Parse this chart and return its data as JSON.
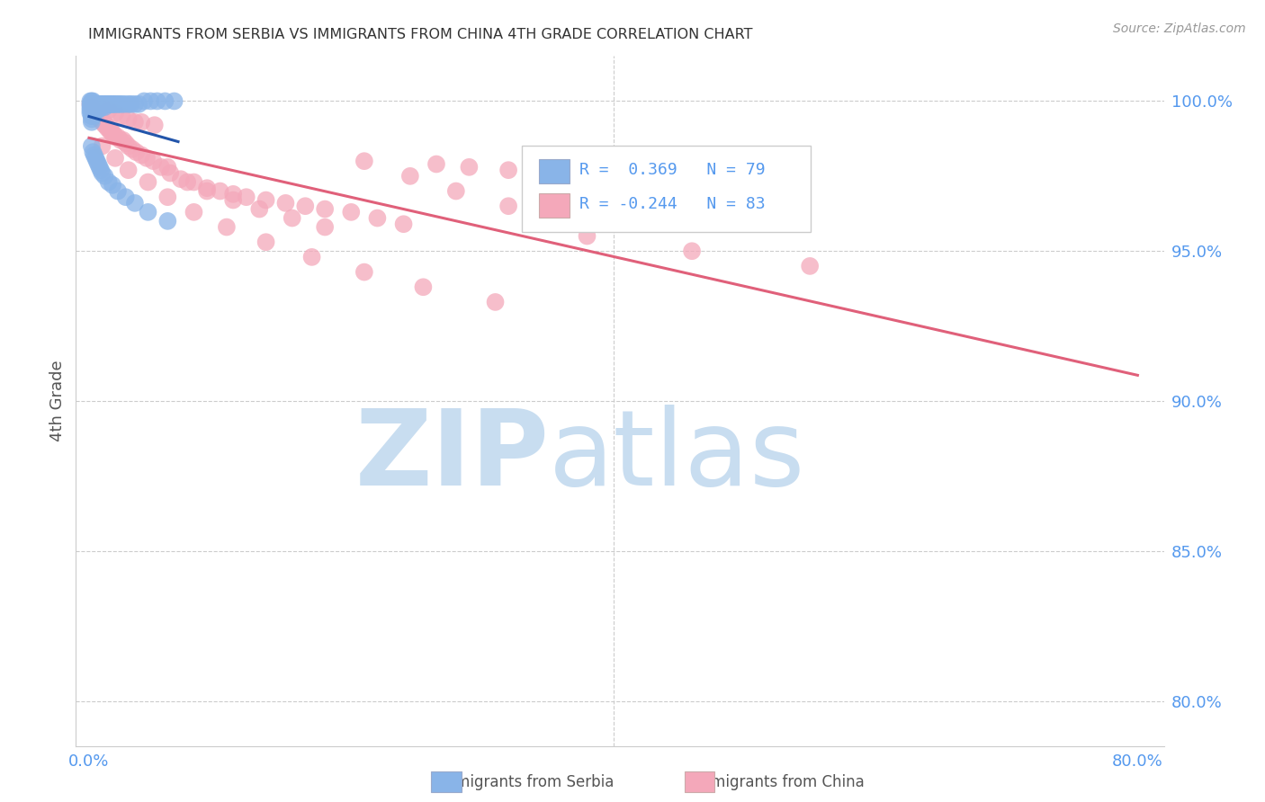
{
  "title": "IMMIGRANTS FROM SERBIA VS IMMIGRANTS FROM CHINA 4TH GRADE CORRELATION CHART",
  "source": "Source: ZipAtlas.com",
  "ylabel": "4th Grade",
  "ytick_labels": [
    "80.0%",
    "85.0%",
    "90.0%",
    "95.0%",
    "100.0%"
  ],
  "ytick_values": [
    0.8,
    0.85,
    0.9,
    0.95,
    1.0
  ],
  "xtick_labels": [
    "0.0%",
    "",
    "",
    "",
    "",
    "",
    "",
    "",
    "80.0%"
  ],
  "xtick_values": [
    0.0,
    0.1,
    0.2,
    0.3,
    0.4,
    0.5,
    0.6,
    0.7,
    0.8
  ],
  "xlim": [
    -0.01,
    0.82
  ],
  "ylim": [
    0.785,
    1.015
  ],
  "legend_serbia_R": "0.369",
  "legend_serbia_N": "79",
  "legend_china_R": "-0.244",
  "legend_china_N": "83",
  "color_serbia": "#89b4e8",
  "color_china": "#f4a8ba",
  "trendline_serbia_color": "#2255aa",
  "trendline_china_color": "#e0607a",
  "title_color": "#333333",
  "axis_label_color": "#555555",
  "tick_label_color": "#5599ee",
  "grid_color": "#cccccc",
  "watermark_color": "#c8ddf0",
  "legend_box_color": "#ffffff",
  "legend_border_color": "#cccccc",
  "serbia_x": [
    0.001,
    0.001,
    0.001,
    0.001,
    0.001,
    0.002,
    0.002,
    0.002,
    0.002,
    0.002,
    0.002,
    0.002,
    0.002,
    0.003,
    0.003,
    0.003,
    0.003,
    0.003,
    0.003,
    0.004,
    0.004,
    0.004,
    0.004,
    0.005,
    0.005,
    0.005,
    0.006,
    0.006,
    0.006,
    0.007,
    0.007,
    0.007,
    0.008,
    0.008,
    0.009,
    0.009,
    0.01,
    0.01,
    0.011,
    0.012,
    0.012,
    0.013,
    0.014,
    0.015,
    0.016,
    0.017,
    0.018,
    0.019,
    0.02,
    0.022,
    0.023,
    0.025,
    0.027,
    0.03,
    0.032,
    0.035,
    0.038,
    0.042,
    0.047,
    0.052,
    0.058,
    0.065,
    0.002,
    0.003,
    0.004,
    0.005,
    0.006,
    0.007,
    0.008,
    0.009,
    0.01,
    0.012,
    0.015,
    0.018,
    0.022,
    0.028,
    0.035,
    0.045,
    0.06
  ],
  "serbia_y": [
    0.999,
    0.998,
    0.997,
    1.0,
    0.996,
    0.999,
    0.998,
    0.997,
    0.996,
    0.995,
    0.994,
    0.993,
    1.0,
    0.999,
    0.998,
    0.997,
    0.996,
    0.995,
    1.0,
    0.999,
    0.998,
    0.997,
    0.996,
    0.999,
    0.998,
    0.997,
    0.999,
    0.998,
    0.997,
    0.999,
    0.998,
    0.997,
    0.999,
    0.998,
    0.999,
    0.998,
    0.999,
    0.998,
    0.999,
    0.999,
    0.998,
    0.999,
    0.999,
    0.999,
    0.999,
    0.999,
    0.999,
    0.999,
    0.999,
    0.999,
    0.999,
    0.999,
    0.999,
    0.999,
    0.999,
    0.999,
    0.999,
    1.0,
    1.0,
    1.0,
    1.0,
    1.0,
    0.985,
    0.983,
    0.982,
    0.981,
    0.98,
    0.979,
    0.978,
    0.977,
    0.976,
    0.975,
    0.973,
    0.972,
    0.97,
    0.968,
    0.966,
    0.963,
    0.96
  ],
  "china_x": [
    0.001,
    0.002,
    0.003,
    0.004,
    0.005,
    0.006,
    0.007,
    0.008,
    0.009,
    0.01,
    0.011,
    0.012,
    0.013,
    0.014,
    0.015,
    0.016,
    0.017,
    0.018,
    0.019,
    0.02,
    0.022,
    0.024,
    0.026,
    0.028,
    0.03,
    0.033,
    0.036,
    0.04,
    0.044,
    0.049,
    0.055,
    0.062,
    0.07,
    0.08,
    0.09,
    0.1,
    0.11,
    0.12,
    0.135,
    0.15,
    0.165,
    0.18,
    0.2,
    0.22,
    0.24,
    0.265,
    0.29,
    0.32,
    0.35,
    0.01,
    0.015,
    0.02,
    0.025,
    0.03,
    0.035,
    0.04,
    0.05,
    0.06,
    0.075,
    0.09,
    0.11,
    0.13,
    0.155,
    0.18,
    0.21,
    0.245,
    0.28,
    0.32,
    0.01,
    0.02,
    0.03,
    0.045,
    0.06,
    0.08,
    0.105,
    0.135,
    0.17,
    0.21,
    0.255,
    0.31,
    0.38,
    0.46,
    0.55
  ],
  "china_y": [
    0.999,
    0.998,
    0.997,
    0.996,
    0.995,
    0.995,
    0.995,
    0.994,
    0.994,
    0.993,
    0.993,
    0.992,
    0.992,
    0.991,
    0.991,
    0.99,
    0.99,
    0.989,
    0.989,
    0.988,
    0.988,
    0.987,
    0.987,
    0.986,
    0.985,
    0.984,
    0.983,
    0.982,
    0.981,
    0.98,
    0.978,
    0.976,
    0.974,
    0.973,
    0.971,
    0.97,
    0.969,
    0.968,
    0.967,
    0.966,
    0.965,
    0.964,
    0.963,
    0.961,
    0.959,
    0.979,
    0.978,
    0.977,
    0.976,
    0.998,
    0.997,
    0.996,
    0.995,
    0.994,
    0.993,
    0.993,
    0.992,
    0.978,
    0.973,
    0.97,
    0.967,
    0.964,
    0.961,
    0.958,
    0.98,
    0.975,
    0.97,
    0.965,
    0.985,
    0.981,
    0.977,
    0.973,
    0.968,
    0.963,
    0.958,
    0.953,
    0.948,
    0.943,
    0.938,
    0.933,
    0.955,
    0.95,
    0.945
  ]
}
